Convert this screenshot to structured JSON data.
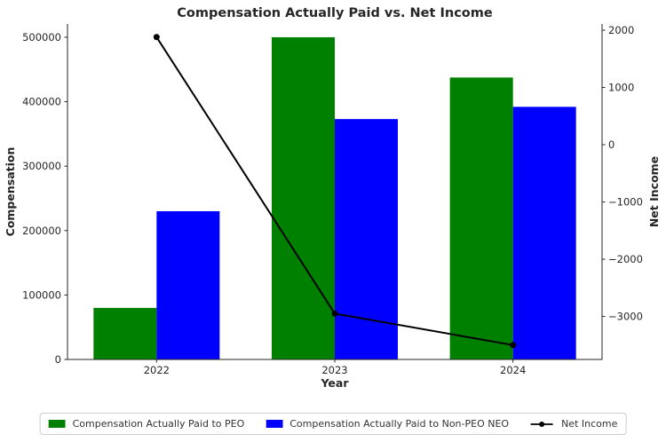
{
  "chart_data": {
    "type": "bar+line",
    "title": "Compensation Actually Paid vs. Net Income",
    "xlabel": "Year",
    "ylabel_left": "Compensation",
    "ylabel_right": "Net Income",
    "categories": [
      "2022",
      "2023",
      "2024"
    ],
    "bar_series": [
      {
        "name": "Compensation Actually Paid to PEO",
        "color": "#008000",
        "values": [
          80000,
          500000,
          437500
        ]
      },
      {
        "name": "Compensation Actually Paid to Non-PEO NEO",
        "color": "#0000ff",
        "values": [
          230000,
          373000,
          392000
        ]
      }
    ],
    "line_series": {
      "name": "Net Income",
      "color": "#000000",
      "axis": "right",
      "values": [
        1880,
        -2950,
        -3500
      ]
    },
    "left_axis": {
      "tick_values": [
        0,
        100000,
        200000,
        300000,
        400000,
        500000
      ],
      "tick_labels": [
        "0",
        "100000",
        "200000",
        "300000",
        "400000",
        "500000"
      ],
      "range": [
        0,
        520600
      ]
    },
    "right_axis": {
      "tick_values": [
        2000,
        1000,
        0,
        -1000,
        -2000,
        -3000
      ],
      "tick_labels": [
        "2000",
        "1000",
        "0",
        "−1000",
        "−2000",
        "−3000"
      ],
      "range": [
        -3751,
        2109
      ]
    },
    "legend": {
      "position": "bottom",
      "grid": false
    }
  }
}
